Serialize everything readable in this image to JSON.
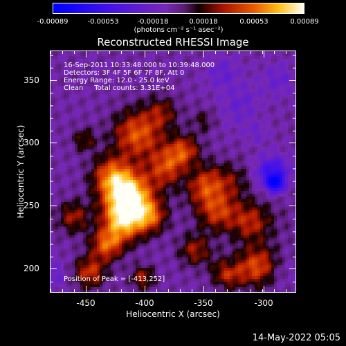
{
  "colorbar": {
    "ticks": [
      "-0.00089",
      "-0.00053",
      "-0.00018",
      "0.00018",
      "0.00053",
      "0.00089"
    ],
    "units_label": "(photons cm⁻² s⁻¹ asec⁻²)",
    "range": [
      -0.00089,
      0.00089
    ]
  },
  "title": "Reconstructed RHESSI Image",
  "info": {
    "time": "16-Sep-2011 10:33:48.000 to 10:39:48.000",
    "detectors": "Detectors: 3F 4F 5F 6F 7F 8F, Att 0",
    "energy": "Energy Range: 12.0 - 25.0 keV",
    "clean": "Clean     Total counts: 3.31E+04",
    "peak": "Position of Peak = [-413,252]"
  },
  "axes": {
    "xlabel": "Heliocentric X (arcsec)",
    "ylabel": "Heliocentric Y (arcsec)",
    "xticks": [
      "-450",
      "-400",
      "-350",
      "-300"
    ],
    "yticks": [
      "350",
      "300",
      "250",
      "200"
    ],
    "xlim": [
      -476,
      -284
    ],
    "ylim": [
      180,
      371
    ]
  },
  "datestamp": "14-May-2022 05:05",
  "colors": {
    "background": "#000000",
    "text": "#ffffff"
  }
}
